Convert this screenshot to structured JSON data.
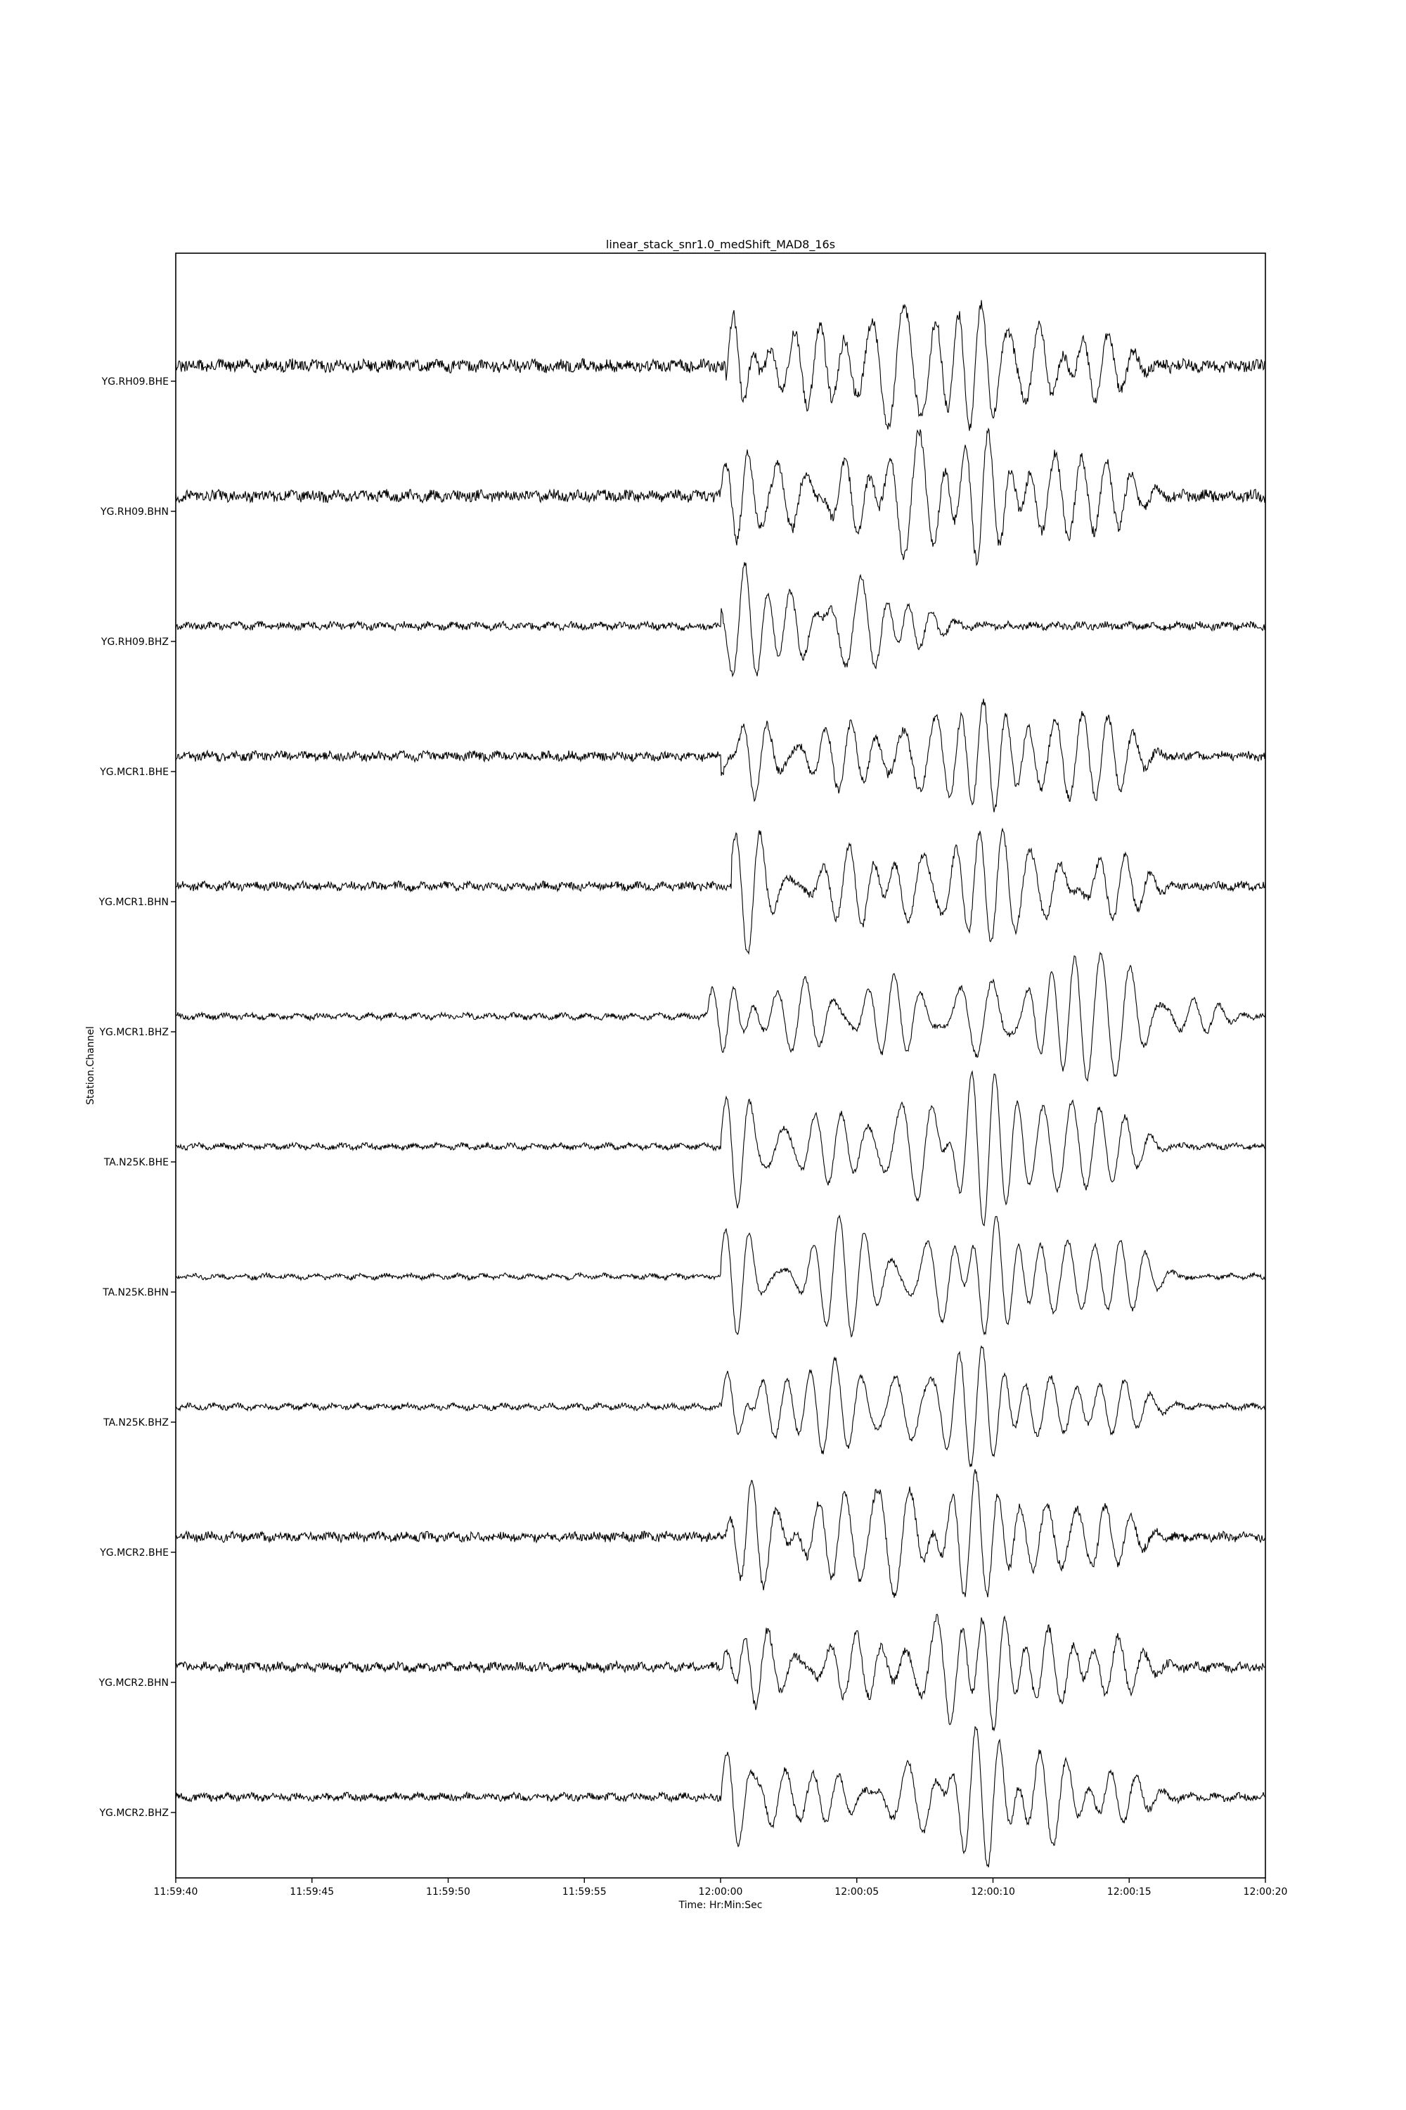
{
  "chart_data": {
    "type": "line",
    "title": "linear_stack_snr1.0_medShift_MAD8_16s",
    "xlabel": "Time: Hr:Min:Sec",
    "ylabel": "Station.Channel",
    "x_tick_labels": [
      "11:59:40",
      "11:59:45",
      "11:59:50",
      "11:59:55",
      "12:00:00",
      "12:00:05",
      "12:00:10",
      "12:00:15",
      "12:00:20"
    ],
    "x_range_seconds_relative_to_12:00:00": [
      -20,
      20
    ],
    "grid": false,
    "legend": "none",
    "line_color": "#000000",
    "series": [
      {
        "name": "YG.RH09.BHE",
        "onset": 0.2,
        "peak_amp": 1.9,
        "packets": [
          [
            0.6,
            0.7
          ],
          [
            3.5,
            1.0
          ],
          [
            6.5,
            1.6
          ],
          [
            9.2,
            1.5
          ],
          [
            11.5,
            1.1
          ],
          [
            13.8,
            0.9
          ]
        ],
        "noise": 0.14
      },
      {
        "name": "YG.RH09.BHN",
        "onset": 0.0,
        "peak_amp": 1.7,
        "packets": [
          [
            2.5,
            0.9
          ],
          [
            5.0,
            1.0
          ],
          [
            7.0,
            1.5
          ],
          [
            9.6,
            1.6
          ],
          [
            12.2,
            0.9
          ],
          [
            14.2,
            0.8
          ]
        ],
        "noise": 0.13
      },
      {
        "name": "YG.RH09.BHZ",
        "onset": 0.0,
        "peak_amp": 1.2,
        "packets": [
          [
            0.6,
            1.2
          ],
          [
            2.6,
            0.9
          ],
          [
            4.8,
            1.1
          ],
          [
            6.8,
            0.6
          ]
        ],
        "noise": 0.08
      },
      {
        "name": "YG.MCR1.BHE",
        "onset": 0.0,
        "peak_amp": 1.4,
        "packets": [
          [
            0.8,
            1.0
          ],
          [
            4.5,
            0.9
          ],
          [
            7.5,
            0.8
          ],
          [
            9.7,
            1.4
          ],
          [
            12.5,
            0.8
          ],
          [
            14.3,
            0.9
          ]
        ],
        "noise": 0.1
      },
      {
        "name": "YG.MCR1.BHN",
        "onset": 0.4,
        "peak_amp": 1.3,
        "packets": [
          [
            1.0,
            0.9
          ],
          [
            5.0,
            1.1
          ],
          [
            7.0,
            0.9
          ],
          [
            9.7,
            1.3
          ],
          [
            11.8,
            0.9
          ],
          [
            14.5,
            0.8
          ]
        ],
        "noise": 0.09
      },
      {
        "name": "YG.MCR1.BHZ",
        "onset": -0.5,
        "peak_amp": 1.5,
        "packets": [
          [
            3.0,
            0.9
          ],
          [
            6.3,
            1.0
          ],
          [
            9.5,
            1.0
          ],
          [
            12.5,
            1.2
          ],
          [
            14.5,
            1.5
          ],
          [
            17.5,
            0.4
          ]
        ],
        "noise": 0.06
      },
      {
        "name": "TA.N25K.BHE",
        "onset": 0.0,
        "peak_amp": 1.9,
        "packets": [
          [
            1.5,
            0.7
          ],
          [
            4.0,
            0.9
          ],
          [
            7.3,
            1.3
          ],
          [
            9.7,
            1.9
          ],
          [
            12.5,
            1.0
          ],
          [
            14.5,
            0.8
          ]
        ],
        "noise": 0.06
      },
      {
        "name": "TA.N25K.BHN",
        "onset": 0.0,
        "peak_amp": 1.5,
        "packets": [
          [
            0.8,
            0.6
          ],
          [
            4.5,
            1.5
          ],
          [
            8.2,
            1.0
          ],
          [
            9.9,
            1.5
          ],
          [
            12.5,
            0.8
          ],
          [
            14.8,
            0.9
          ]
        ],
        "noise": 0.05
      },
      {
        "name": "TA.N25K.BHZ",
        "onset": 0.0,
        "peak_amp": 1.5,
        "packets": [
          [
            1.5,
            0.8
          ],
          [
            4.0,
            1.2
          ],
          [
            7.0,
            0.9
          ],
          [
            9.5,
            1.5
          ],
          [
            12.0,
            0.7
          ],
          [
            14.5,
            0.7
          ]
        ],
        "noise": 0.06
      },
      {
        "name": "YG.MCR2.BHE",
        "onset": 0.2,
        "peak_amp": 1.6,
        "packets": [
          [
            1.5,
            0.9
          ],
          [
            4.0,
            1.0
          ],
          [
            6.3,
            1.4
          ],
          [
            9.4,
            1.6
          ],
          [
            12.0,
            0.8
          ],
          [
            14.3,
            0.7
          ]
        ],
        "noise": 0.1
      },
      {
        "name": "YG.MCR2.BHN",
        "onset": 0.0,
        "peak_amp": 1.6,
        "packets": [
          [
            1.5,
            0.8
          ],
          [
            5.0,
            0.8
          ],
          [
            8.4,
            1.1
          ],
          [
            9.8,
            1.6
          ],
          [
            12.2,
            0.9
          ],
          [
            14.3,
            0.8
          ]
        ],
        "noise": 0.1
      },
      {
        "name": "YG.MCR2.BHZ",
        "onset": 0.0,
        "peak_amp": 1.7,
        "packets": [
          [
            1.5,
            0.8
          ],
          [
            4.0,
            0.6
          ],
          [
            7.3,
            0.9
          ],
          [
            9.7,
            1.7
          ],
          [
            12.0,
            1.2
          ],
          [
            14.5,
            0.7
          ]
        ],
        "noise": 0.08
      }
    ]
  }
}
